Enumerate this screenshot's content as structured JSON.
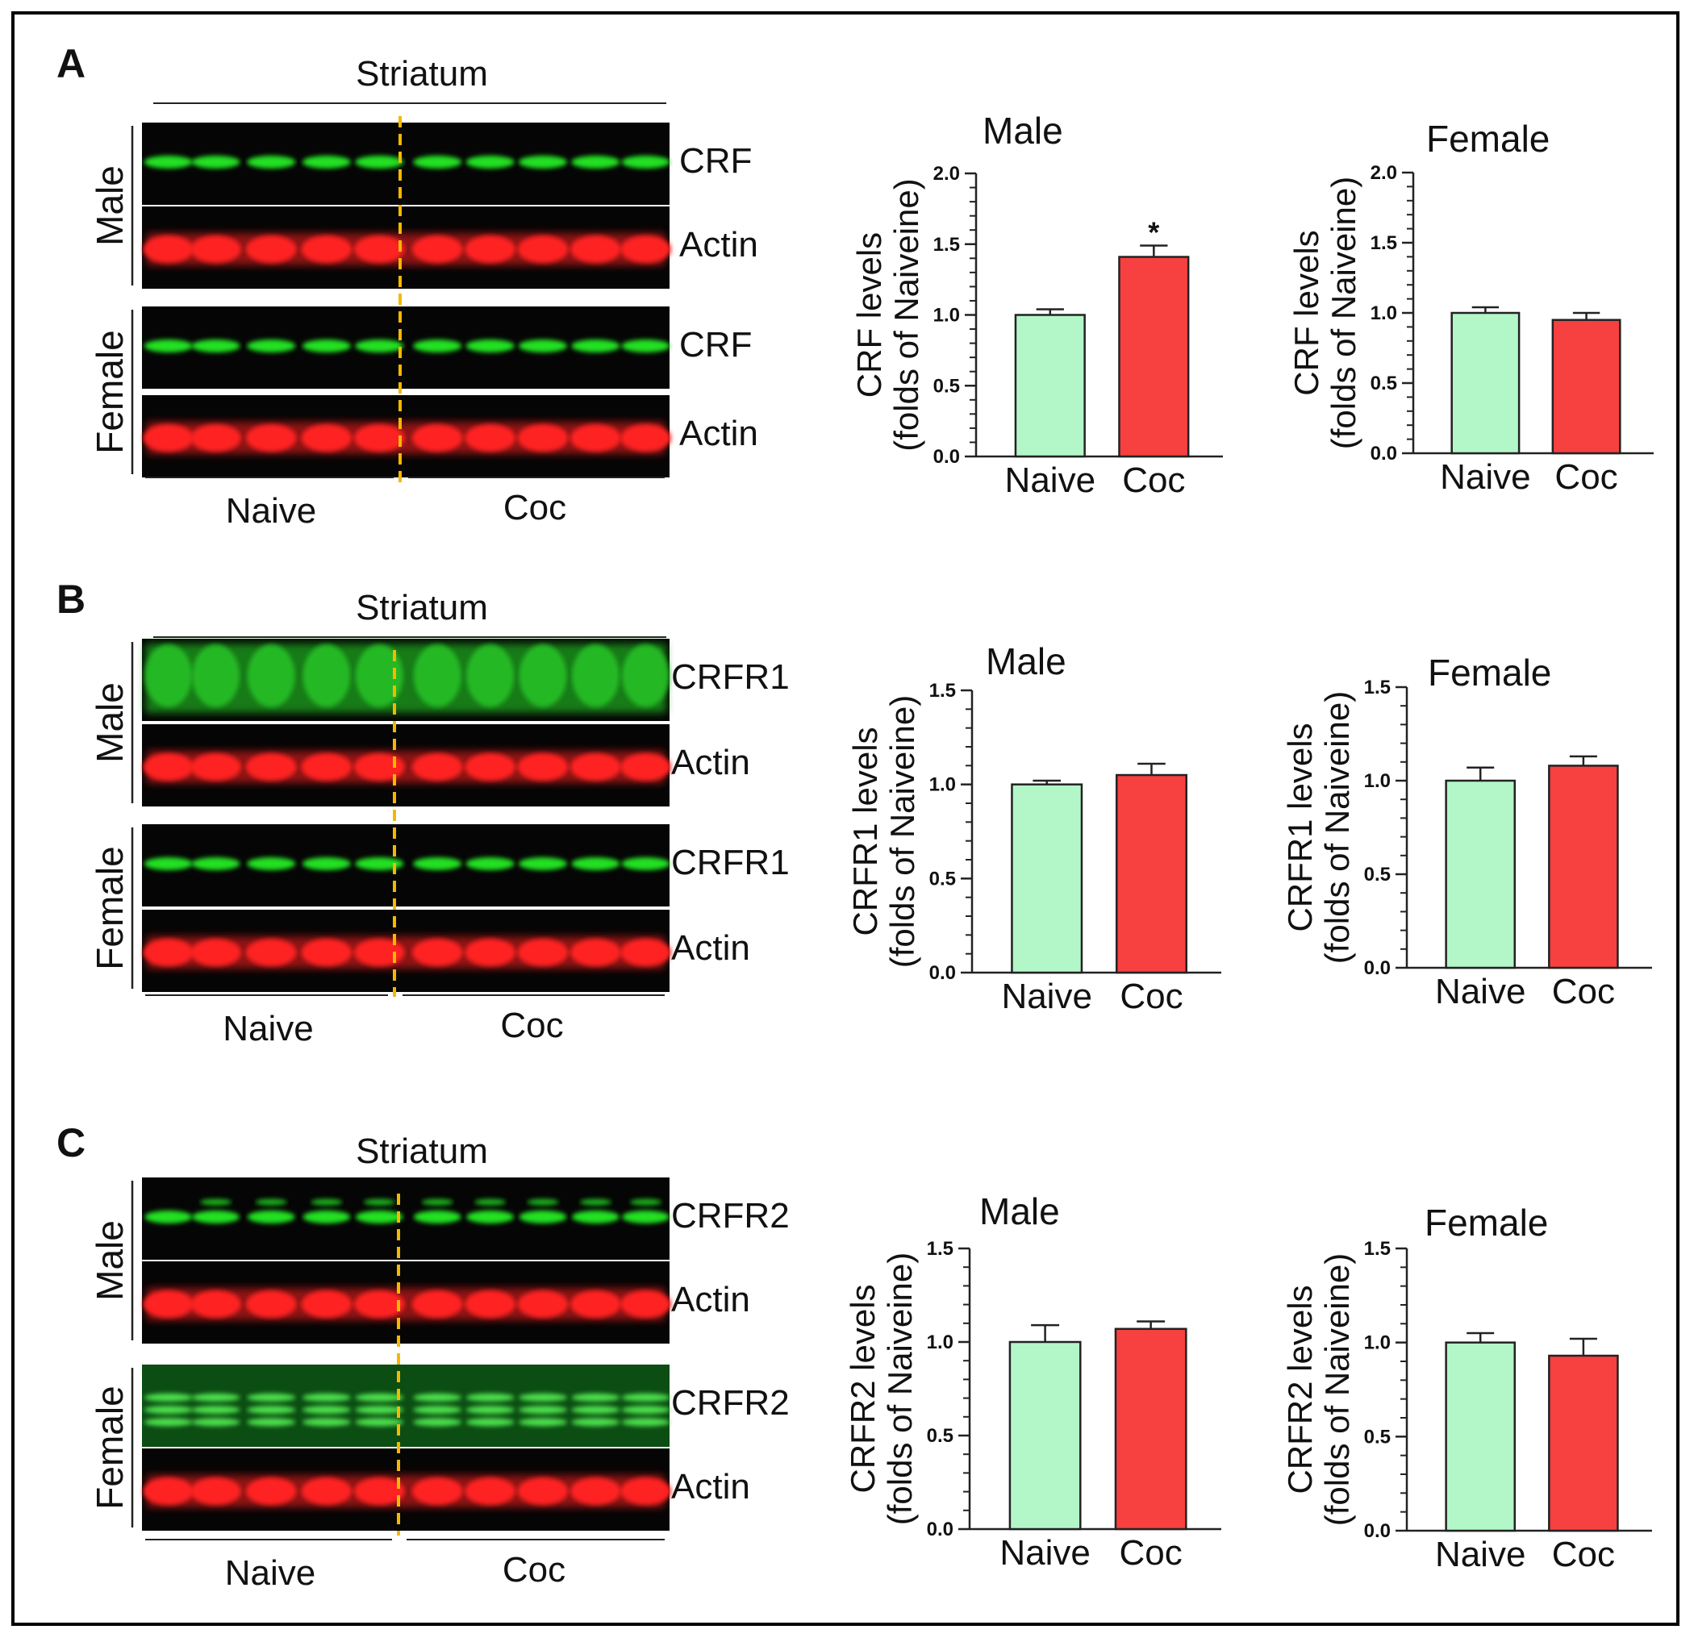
{
  "figure": {
    "panels": [
      {
        "letter": "A",
        "region": "Striatum",
        "groups": [
          "Naive",
          "Coc"
        ],
        "blots": [
          {
            "sex": "Male",
            "rows": [
              "CRF",
              "Actin"
            ]
          },
          {
            "sex": "Female",
            "rows": [
              "CRF",
              "Actin"
            ]
          }
        ]
      },
      {
        "letter": "B",
        "region": "Striatum",
        "groups": [
          "Naive",
          "Coc"
        ],
        "blots": [
          {
            "sex": "Male",
            "rows": [
              "CRFR1",
              "Actin"
            ]
          },
          {
            "sex": "Female",
            "rows": [
              "CRFR1",
              "Actin"
            ]
          }
        ]
      },
      {
        "letter": "C",
        "region": "Striatum",
        "groups": [
          "Naive",
          "Coc"
        ],
        "blots": [
          {
            "sex": "Male",
            "rows": [
              "CRFR2",
              "Actin"
            ]
          },
          {
            "sex": "Female",
            "rows": [
              "CRFR2",
              "Actin"
            ]
          }
        ]
      }
    ]
  },
  "colors": {
    "naive": "#b3f7c9",
    "coc": "#f74040",
    "protein_band": "#22e022",
    "actin_band": "#ff2020",
    "divider": "#f5b800"
  },
  "chart_data": [
    {
      "type": "bar",
      "panel": "A",
      "title": "Male",
      "ylabel": [
        "CRF levels",
        "(folds of Naiveine)"
      ],
      "categories": [
        "Naive",
        "Coc"
      ],
      "values": [
        1.0,
        1.41
      ],
      "errors": [
        0.04,
        0.08
      ],
      "ylim": [
        0,
        2.0
      ],
      "yticks": [
        "0.0",
        "0.5",
        "1.0",
        "1.5",
        "2.0"
      ],
      "annotations": [
        "",
        "*"
      ]
    },
    {
      "type": "bar",
      "panel": "A",
      "title": "Female",
      "ylabel": [
        "CRF levels",
        "(folds of Naiveine)"
      ],
      "categories": [
        "Naive",
        "Coc"
      ],
      "values": [
        1.0,
        0.95
      ],
      "errors": [
        0.04,
        0.05
      ],
      "ylim": [
        0,
        2.0
      ],
      "yticks": [
        "0.0",
        "0.5",
        "1.0",
        "1.5",
        "2.0"
      ],
      "annotations": [
        "",
        ""
      ]
    },
    {
      "type": "bar",
      "panel": "B",
      "title": "Male",
      "ylabel": [
        "CRFR1 levels",
        "(folds of Naiveine)"
      ],
      "categories": [
        "Naive",
        "Coc"
      ],
      "values": [
        1.0,
        1.05
      ],
      "errors": [
        0.02,
        0.06
      ],
      "ylim": [
        0,
        1.5
      ],
      "yticks": [
        "0.0",
        "0.5",
        "1.0",
        "1.5"
      ],
      "annotations": [
        "",
        ""
      ]
    },
    {
      "type": "bar",
      "panel": "B",
      "title": "Female",
      "ylabel": [
        "CRFR1 levels",
        "(folds of Naiveine)"
      ],
      "categories": [
        "Naive",
        "Coc"
      ],
      "values": [
        1.0,
        1.08
      ],
      "errors": [
        0.07,
        0.05
      ],
      "ylim": [
        0,
        1.5
      ],
      "yticks": [
        "0.0",
        "0.5",
        "1.0",
        "1.5"
      ],
      "annotations": [
        "",
        ""
      ]
    },
    {
      "type": "bar",
      "panel": "C",
      "title": "Male",
      "ylabel": [
        "CRFR2 levels",
        "(folds of Naiveine)"
      ],
      "categories": [
        "Naive",
        "Coc"
      ],
      "values": [
        1.0,
        1.07
      ],
      "errors": [
        0.09,
        0.04
      ],
      "ylim": [
        0,
        1.5
      ],
      "yticks": [
        "0.0",
        "0.5",
        "1.0",
        "1.5"
      ],
      "annotations": [
        "",
        ""
      ]
    },
    {
      "type": "bar",
      "panel": "C",
      "title": "Female",
      "ylabel": [
        "CRFR2 levels",
        "(folds of Naiveine)"
      ],
      "categories": [
        "Naive",
        "Coc"
      ],
      "values": [
        1.0,
        0.93
      ],
      "errors": [
        0.05,
        0.09
      ],
      "ylim": [
        0,
        1.5
      ],
      "yticks": [
        "0.0",
        "0.5",
        "1.0",
        "1.5"
      ],
      "annotations": [
        "",
        ""
      ]
    }
  ]
}
